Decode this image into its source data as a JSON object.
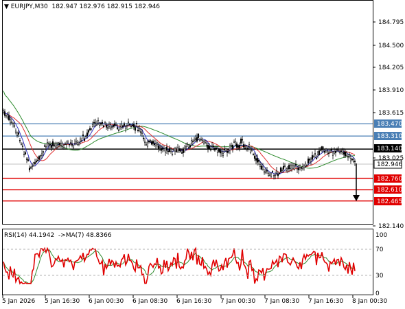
{
  "header": {
    "symbol": "EURJPY,M30",
    "open": "182.947",
    "high": "182.976",
    "low": "182.915",
    "close": "182.946"
  },
  "price_axis": [
    "184.795",
    "184.500",
    "184.205",
    "183.910",
    "183.615",
    "183.025",
    "182.140"
  ],
  "level_labels": {
    "r2": "183.470",
    "r1": "183.310",
    "pivot": "183.140",
    "current": "182.946",
    "s1": "182.760",
    "s2": "182.610",
    "s3": "182.465"
  },
  "rsi": {
    "label": "RSI(14) 44.1942",
    "ma_label": "->MA(7) 48.8366",
    "axis": [
      "100",
      "70",
      "30",
      "0"
    ]
  },
  "time_axis": [
    "5 Jan 2026",
    "5 Jan 16:30",
    "6 Jan 00:30",
    "6 Jan 08:30",
    "6 Jan 16:30",
    "7 Jan 00:30",
    "7 Jan 08:30",
    "7 Jan 16:30",
    "8 Jan 00:30"
  ],
  "colors": {
    "resistance": "#4a7fb5",
    "pivot": "#000000",
    "support": "#e00000",
    "ma_fast": "#3030c0",
    "ma_mid": "#e03030",
    "ma_slow": "#2e8b2e",
    "rsi_line": "#e00000",
    "rsi_ma": "#2e8b2e",
    "arrow": "#000000"
  },
  "chart_data": {
    "type": "candlestick",
    "ylim": [
      182.14,
      185.0
    ],
    "horizontal_levels": [
      183.47,
      183.31,
      183.14,
      182.76,
      182.61,
      182.465
    ],
    "rsi_levels": [
      70,
      30
    ]
  }
}
